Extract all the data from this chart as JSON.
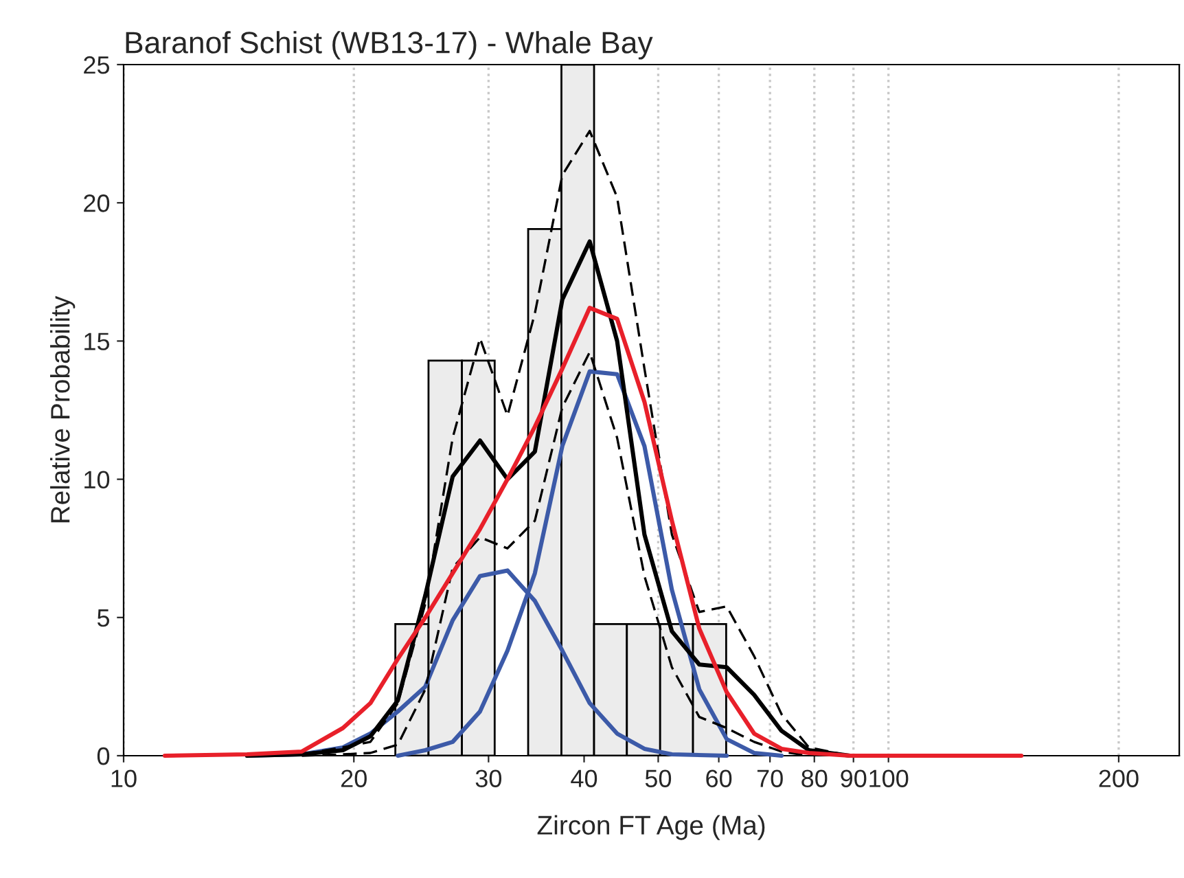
{
  "chart_data": {
    "type": "histogram",
    "title": "Baranof Schist (WB13-17) - Whale Bay",
    "xlabel": "Zircon FT Age (Ma)",
    "ylabel": "Relative Probability",
    "bins": [
      22.66,
      25.04,
      27.69,
      30.56,
      33.8,
      37.36,
      41.22,
      45.5,
      50.29,
      55.52,
      61.35
    ],
    "values": [
      4.76,
      14.29,
      14.29,
      0,
      19.05,
      25,
      4.76,
      4.76,
      4.76,
      4.76
    ],
    "color": "#ececec",
    "series": [
      {
        "type": "line",
        "color": "#3c5aa8",
        "line_style": "solid",
        "x": [
          14.5,
          17.1,
          19.35,
          21.02,
          22.83,
          24.8,
          26.93,
          29.24,
          31.76,
          34.49,
          37.46,
          40.68,
          44.18,
          47.97,
          52.1,
          61.45
        ],
        "values": [
          0,
          0.05,
          0.3,
          0.8,
          1.6,
          2.5,
          4.9,
          6.5,
          6.7,
          5.6,
          3.8,
          1.9,
          0.8,
          0.25,
          0.05,
          0
        ]
      },
      {
        "type": "line",
        "color": "#3c5aa8",
        "line_style": "solid",
        "x": [
          22.83,
          24.8,
          26.93,
          29.24,
          31.76,
          34.49,
          37.46,
          40.68,
          44.18,
          47.97,
          52.1,
          56.58,
          61.45,
          66.74,
          72.48
        ],
        "values": [
          0,
          0.2,
          0.5,
          1.6,
          3.8,
          6.6,
          11.2,
          13.9,
          13.8,
          11.2,
          6.0,
          2.4,
          0.6,
          0.1,
          0
        ]
      },
      {
        "type": "line",
        "color": "#000000",
        "line_style": "dashed",
        "x": [
          17.1,
          19.35,
          21.02,
          22.83,
          24.8,
          26.93,
          29.24,
          31.76,
          34.49,
          37.46,
          40.68,
          44.18,
          47.97,
          52.1,
          56.58,
          61.45,
          66.74,
          72.48,
          78.71,
          89.08
        ],
        "values": [
          0.05,
          0.3,
          0.5,
          1.9,
          5.5,
          11.5,
          15.1,
          12.3,
          16.0,
          21.0,
          22.6,
          20.2,
          14.0,
          8.0,
          5.2,
          5.4,
          3.6,
          1.5,
          0.3,
          0
        ]
      },
      {
        "type": "line",
        "color": "#000000",
        "line_style": "dashed",
        "x": [
          17.1,
          19.35,
          21.02,
          22.83,
          24.8,
          26.93,
          29.24,
          31.76,
          34.49,
          37.46,
          40.68,
          44.18,
          47.97,
          52.1,
          56.58,
          61.45,
          66.74,
          72.48,
          78.71
        ],
        "values": [
          0,
          0.05,
          0.1,
          0.4,
          2.4,
          6.8,
          7.9,
          7.5,
          8.5,
          12.6,
          14.6,
          11.5,
          6.5,
          3.2,
          1.4,
          1.0,
          0.5,
          0.15,
          0
        ]
      },
      {
        "type": "line",
        "color": "#000000",
        "line_style": "solid",
        "x": [
          14.5,
          17.1,
          19.35,
          21.02,
          22.83,
          24.8,
          26.93,
          29.24,
          31.76,
          34.49,
          37.46,
          40.68,
          44.18,
          47.97,
          52.1,
          56.58,
          61.45,
          66.74,
          72.48,
          78.71,
          89.08,
          105.1
        ],
        "values": [
          0,
          0.05,
          0.2,
          0.7,
          2.0,
          5.8,
          10.1,
          11.4,
          10.0,
          11.0,
          16.5,
          18.6,
          15.0,
          8.0,
          4.5,
          3.3,
          3.2,
          2.2,
          0.9,
          0.2,
          0,
          0
        ]
      },
      {
        "type": "line",
        "color": "#e8202a",
        "line_style": "solid",
        "x": [
          11.32,
          14.5,
          17.1,
          19.35,
          21.02,
          22.83,
          24.8,
          26.93,
          29.24,
          31.76,
          34.49,
          37.46,
          40.68,
          44.18,
          47.97,
          52.1,
          56.58,
          61.45,
          66.74,
          72.48,
          78.71,
          89.08,
          105.1,
          149.2
        ],
        "values": [
          0,
          0.05,
          0.15,
          1.0,
          1.9,
          3.5,
          5.0,
          6.6,
          8.2,
          10.0,
          11.9,
          14.0,
          16.2,
          15.8,
          12.8,
          8.5,
          4.6,
          2.3,
          0.8,
          0.25,
          0.1,
          0,
          0,
          0
        ]
      }
    ],
    "log": "x",
    "xlim": [
      10,
      240
    ],
    "xticks": [
      10,
      20,
      30,
      40,
      50,
      60,
      70,
      80,
      90,
      100,
      200
    ],
    "ylim": [
      0,
      25
    ],
    "yticks": [
      0,
      5,
      10,
      15,
      20,
      25
    ],
    "grid": "x"
  }
}
